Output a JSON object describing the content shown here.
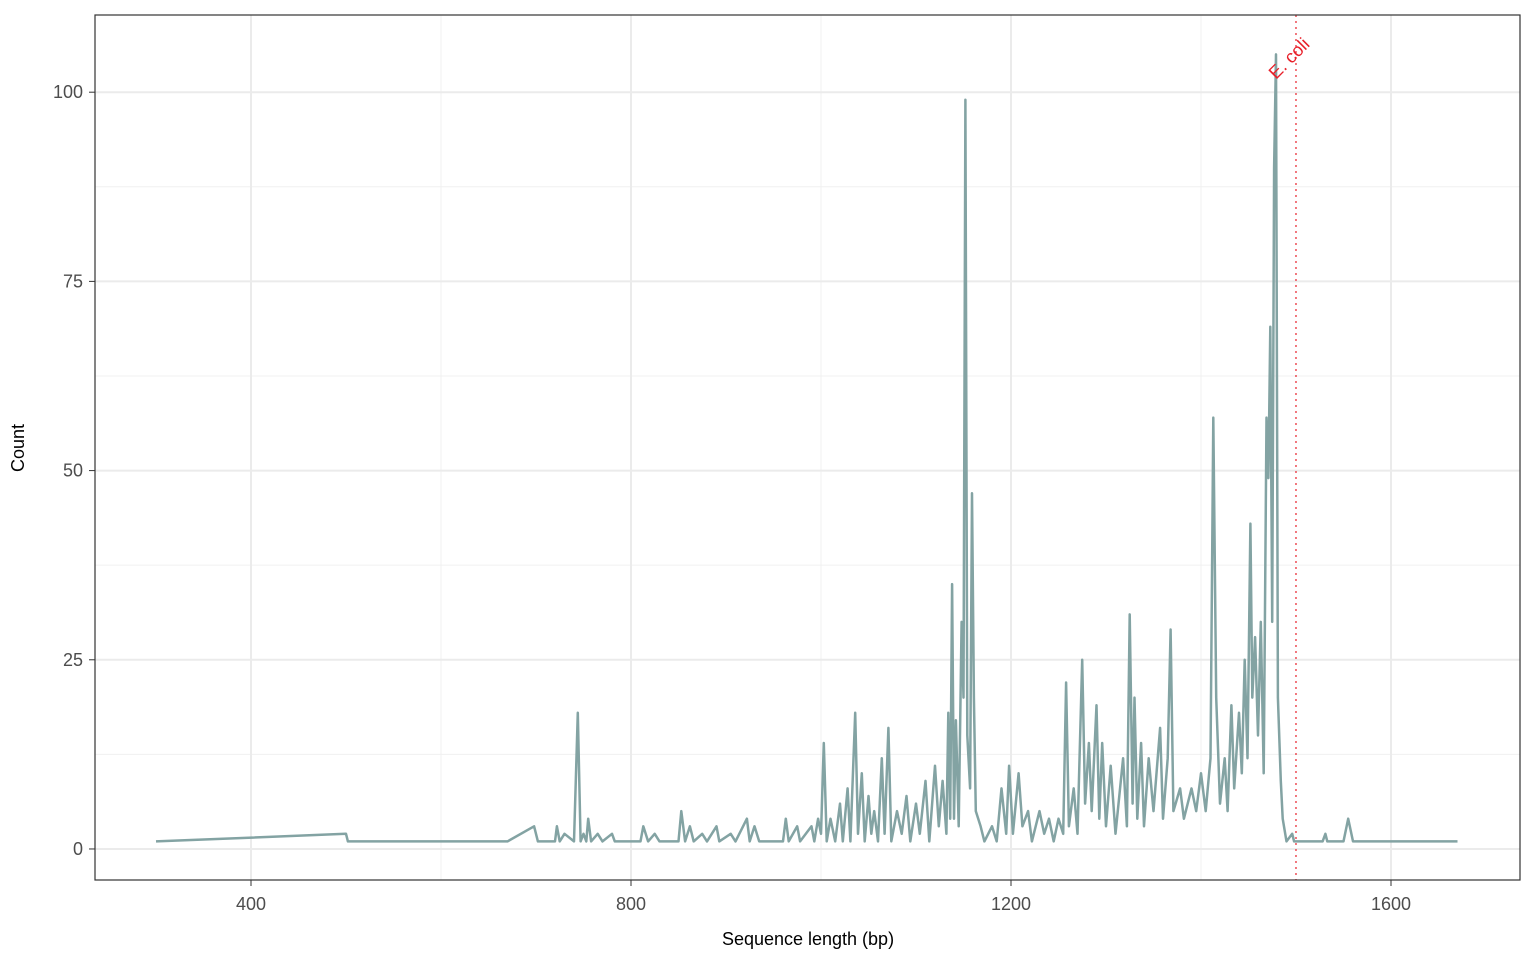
{
  "chart_data": {
    "type": "line",
    "x_label": "Sequence length (bp)",
    "y_label": "Count",
    "xlim": [
      235.8,
      1735.8
    ],
    "ylim": [
      -4.1,
      110.2
    ],
    "xticks": [
      400,
      800,
      1200,
      1600
    ],
    "yticks": [
      0,
      25,
      50,
      75,
      100
    ],
    "x_minor_ticks": [
      600,
      1000,
      1400
    ],
    "y_minor_ticks": [
      12.5,
      37.5,
      62.5,
      87.5
    ],
    "grid": true,
    "reference_line": {
      "x": 1500,
      "label": "E. coli",
      "color": "#e8202a"
    },
    "series": [
      {
        "color": "#83a3a3",
        "x": [
          300,
          500,
          502,
          670,
          698,
          702,
          720,
          722,
          725,
          730,
          740,
          744,
          747,
          750,
          753,
          755,
          758,
          765,
          770,
          780,
          783,
          810,
          813,
          818,
          825,
          830,
          850,
          853,
          857,
          862,
          866,
          875,
          880,
          890,
          893,
          905,
          910,
          922,
          925,
          930,
          935,
          960,
          963,
          966,
          975,
          978,
          990,
          993,
          997,
          1000,
          1003,
          1006,
          1010,
          1015,
          1020,
          1023,
          1028,
          1031,
          1036,
          1039,
          1043,
          1046,
          1050,
          1053,
          1056,
          1060,
          1064,
          1067,
          1071,
          1074,
          1080,
          1085,
          1090,
          1094,
          1100,
          1104,
          1110,
          1114,
          1120,
          1124,
          1128,
          1132,
          1134,
          1136,
          1138,
          1140,
          1142,
          1145,
          1148,
          1150,
          1152,
          1154,
          1157,
          1159,
          1161,
          1163,
          1168,
          1172,
          1180,
          1185,
          1190,
          1195,
          1198,
          1202,
          1208,
          1212,
          1218,
          1222,
          1230,
          1235,
          1240,
          1245,
          1250,
          1255,
          1258,
          1261,
          1266,
          1270,
          1275,
          1278,
          1282,
          1285,
          1290,
          1293,
          1296,
          1300,
          1305,
          1310,
          1318,
          1322,
          1325,
          1328,
          1330,
          1333,
          1337,
          1340,
          1345,
          1350,
          1357,
          1360,
          1365,
          1368,
          1371,
          1378,
          1382,
          1390,
          1395,
          1400,
          1405,
          1410,
          1413,
          1416,
          1420,
          1425,
          1428,
          1432,
          1435,
          1440,
          1443,
          1446,
          1449,
          1452,
          1454,
          1457,
          1460,
          1463,
          1466,
          1469,
          1471,
          1473,
          1475,
          1477,
          1479,
          1481,
          1484,
          1486,
          1490,
          1496,
          1498,
          1528,
          1531,
          1533,
          1550,
          1555,
          1560,
          1670
        ],
        "values": [
          1,
          2,
          1,
          1,
          3,
          1,
          1,
          3,
          1,
          2,
          1,
          18,
          1,
          2,
          1,
          4,
          1,
          2,
          1,
          2,
          1,
          1,
          3,
          1,
          2,
          1,
          1,
          5,
          1,
          3,
          1,
          2,
          1,
          3,
          1,
          2,
          1,
          4,
          1,
          3,
          1,
          1,
          4,
          1,
          3,
          1,
          3,
          1,
          4,
          2,
          14,
          1,
          4,
          1,
          6,
          1,
          8,
          1,
          18,
          2,
          10,
          1,
          7,
          2,
          5,
          1,
          12,
          2,
          16,
          1,
          5,
          2,
          7,
          1,
          6,
          2,
          9,
          1,
          11,
          3,
          9,
          2,
          18,
          4,
          35,
          4,
          17,
          3,
          30,
          20,
          99,
          15,
          8,
          47,
          20,
          5,
          3,
          1,
          3,
          1,
          8,
          2,
          11,
          2,
          10,
          3,
          5,
          1,
          5,
          2,
          4,
          1,
          4,
          2,
          22,
          3,
          8,
          2,
          25,
          6,
          14,
          5,
          19,
          4,
          14,
          3,
          11,
          2,
          12,
          3,
          31,
          6,
          20,
          4,
          14,
          3,
          12,
          5,
          16,
          4,
          12,
          29,
          5,
          8,
          4,
          8,
          5,
          10,
          5,
          12,
          57,
          20,
          6,
          12,
          5,
          19,
          8,
          18,
          10,
          25,
          12,
          43,
          20,
          28,
          15,
          30,
          10,
          57,
          49,
          69,
          30,
          90,
          105,
          20,
          9,
          4,
          1,
          2,
          1,
          1,
          2,
          1,
          1,
          4,
          1,
          1
        ]
      }
    ]
  }
}
